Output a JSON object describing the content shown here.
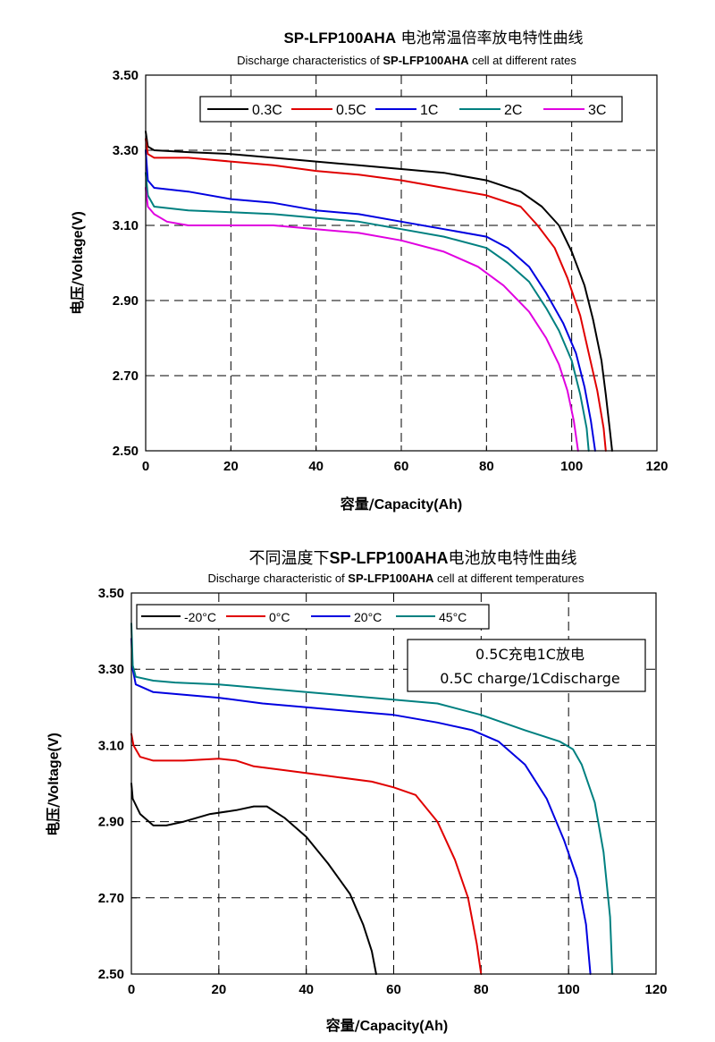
{
  "chart_data": [
    {
      "type": "line",
      "title_part1": "SP-LFP100AHA",
      "title_part2": " 电池常温倍率放电特性曲线",
      "subtitle_part1": "Discharge characteristics of ",
      "subtitle_part2": "SP-LFP100AHA",
      "subtitle_part3": " cell at different rates",
      "xlabel_zh": "容量/",
      "xlabel_en": "Capacity(Ah)",
      "ylabel_zh": "电压/",
      "ylabel_en": "Voltage(V)",
      "xlim": [
        0,
        120
      ],
      "ylim": [
        2.5,
        3.5
      ],
      "x_ticks": [
        "0",
        "20",
        "40",
        "60",
        "80",
        "100",
        "120"
      ],
      "y_ticks": [
        "2.50",
        "2.70",
        "2.90",
        "3.10",
        "3.30",
        "3.50"
      ],
      "grid": true,
      "legend_position": "top-center",
      "series": [
        {
          "name": "0.3C",
          "color": "#000000",
          "points": [
            [
              0,
              3.35
            ],
            [
              0.5,
              3.31
            ],
            [
              2,
              3.3
            ],
            [
              10,
              3.295
            ],
            [
              20,
              3.29
            ],
            [
              30,
              3.28
            ],
            [
              40,
              3.27
            ],
            [
              50,
              3.26
            ],
            [
              60,
              3.25
            ],
            [
              70,
              3.24
            ],
            [
              80,
              3.22
            ],
            [
              88,
              3.19
            ],
            [
              93,
              3.15
            ],
            [
              97,
              3.1
            ],
            [
              100,
              3.03
            ],
            [
              103,
              2.94
            ],
            [
              105,
              2.85
            ],
            [
              107,
              2.74
            ],
            [
              108,
              2.65
            ],
            [
              109,
              2.55
            ],
            [
              109.5,
              2.5
            ]
          ]
        },
        {
          "name": "0.5C",
          "color": "#e00000",
          "points": [
            [
              0,
              3.33
            ],
            [
              0.5,
              3.29
            ],
            [
              2,
              3.28
            ],
            [
              10,
              3.28
            ],
            [
              20,
              3.27
            ],
            [
              30,
              3.26
            ],
            [
              40,
              3.245
            ],
            [
              50,
              3.235
            ],
            [
              60,
              3.22
            ],
            [
              70,
              3.2
            ],
            [
              80,
              3.18
            ],
            [
              88,
              3.15
            ],
            [
              92,
              3.1
            ],
            [
              96,
              3.04
            ],
            [
              99,
              2.96
            ],
            [
              102,
              2.86
            ],
            [
              104,
              2.76
            ],
            [
              106,
              2.66
            ],
            [
              107.5,
              2.56
            ],
            [
              108,
              2.5
            ]
          ]
        },
        {
          "name": "1C",
          "color": "#0000e0",
          "points": [
            [
              0,
              3.3
            ],
            [
              0.5,
              3.22
            ],
            [
              2,
              3.2
            ],
            [
              10,
              3.19
            ],
            [
              20,
              3.17
            ],
            [
              30,
              3.16
            ],
            [
              40,
              3.14
            ],
            [
              50,
              3.13
            ],
            [
              60,
              3.11
            ],
            [
              70,
              3.09
            ],
            [
              80,
              3.07
            ],
            [
              85,
              3.04
            ],
            [
              90,
              2.99
            ],
            [
              94,
              2.92
            ],
            [
              98,
              2.84
            ],
            [
              101,
              2.76
            ],
            [
              103,
              2.67
            ],
            [
              104.5,
              2.58
            ],
            [
              105.5,
              2.5
            ]
          ]
        },
        {
          "name": "2C",
          "color": "#008080",
          "points": [
            [
              0,
              3.24
            ],
            [
              0.5,
              3.18
            ],
            [
              2,
              3.15
            ],
            [
              10,
              3.14
            ],
            [
              20,
              3.135
            ],
            [
              30,
              3.13
            ],
            [
              40,
              3.12
            ],
            [
              50,
              3.11
            ],
            [
              60,
              3.09
            ],
            [
              70,
              3.07
            ],
            [
              80,
              3.04
            ],
            [
              85,
              3.0
            ],
            [
              90,
              2.95
            ],
            [
              94,
              2.88
            ],
            [
              97,
              2.82
            ],
            [
              100,
              2.74
            ],
            [
              102,
              2.65
            ],
            [
              103.5,
              2.56
            ],
            [
              104,
              2.5
            ]
          ]
        },
        {
          "name": "3C",
          "color": "#e000e0",
          "points": [
            [
              0,
              3.2
            ],
            [
              0.5,
              3.15
            ],
            [
              2,
              3.13
            ],
            [
              5,
              3.11
            ],
            [
              10,
              3.1
            ],
            [
              20,
              3.1
            ],
            [
              30,
              3.1
            ],
            [
              40,
              3.09
            ],
            [
              50,
              3.08
            ],
            [
              60,
              3.06
            ],
            [
              70,
              3.03
            ],
            [
              78,
              2.99
            ],
            [
              84,
              2.94
            ],
            [
              90,
              2.87
            ],
            [
              94,
              2.8
            ],
            [
              97,
              2.73
            ],
            [
              99,
              2.66
            ],
            [
              100.5,
              2.58
            ],
            [
              101.5,
              2.5
            ]
          ]
        }
      ]
    },
    {
      "type": "line",
      "title_part1": "不同温度下",
      "title_part2": "SP-LFP100AHA",
      "title_part3": "电池放电特性曲线",
      "subtitle_part1": "Discharge characteristic of ",
      "subtitle_part2": "SP-LFP100AHA",
      "subtitle_part3": " cell at different temperatures",
      "xlabel_zh": "容量/",
      "xlabel_en": "Capacity(Ah)",
      "ylabel_zh": "电压/",
      "ylabel_en": "Voltage(V)",
      "xlim": [
        0,
        120
      ],
      "ylim": [
        2.5,
        3.5
      ],
      "x_ticks": [
        "0",
        "20",
        "40",
        "60",
        "80",
        "100",
        "120"
      ],
      "y_ticks": [
        "2.50",
        "2.70",
        "2.90",
        "3.10",
        "3.30",
        "3.50"
      ],
      "grid": true,
      "legend_position": "top-left",
      "annotation": [
        "0.5C充电1C放电",
        "0.5C charge/1Cdischarge"
      ],
      "series": [
        {
          "name": "-20°C",
          "color": "#000000",
          "points": [
            [
              0,
              3.0
            ],
            [
              0.3,
              2.96
            ],
            [
              2,
              2.92
            ],
            [
              5,
              2.89
            ],
            [
              8,
              2.89
            ],
            [
              12,
              2.9
            ],
            [
              18,
              2.92
            ],
            [
              24,
              2.93
            ],
            [
              28,
              2.94
            ],
            [
              31,
              2.94
            ],
            [
              35,
              2.91
            ],
            [
              40,
              2.86
            ],
            [
              45,
              2.79
            ],
            [
              50,
              2.71
            ],
            [
              53,
              2.63
            ],
            [
              55,
              2.56
            ],
            [
              56,
              2.5
            ]
          ]
        },
        {
          "name": "0°C",
          "color": "#e00000",
          "points": [
            [
              0,
              3.13
            ],
            [
              0.5,
              3.1
            ],
            [
              2,
              3.07
            ],
            [
              5,
              3.06
            ],
            [
              12,
              3.06
            ],
            [
              20,
              3.065
            ],
            [
              24,
              3.06
            ],
            [
              28,
              3.045
            ],
            [
              35,
              3.035
            ],
            [
              45,
              3.02
            ],
            [
              55,
              3.005
            ],
            [
              60,
              2.99
            ],
            [
              65,
              2.97
            ],
            [
              70,
              2.9
            ],
            [
              74,
              2.8
            ],
            [
              77,
              2.7
            ],
            [
              79,
              2.58
            ],
            [
              80,
              2.5
            ]
          ]
        },
        {
          "name": "20°C",
          "color": "#0000e0",
          "points": [
            [
              0,
              3.38
            ],
            [
              0.3,
              3.3
            ],
            [
              1,
              3.26
            ],
            [
              5,
              3.24
            ],
            [
              10,
              3.235
            ],
            [
              20,
              3.225
            ],
            [
              30,
              3.21
            ],
            [
              40,
              3.2
            ],
            [
              50,
              3.19
            ],
            [
              60,
              3.18
            ],
            [
              70,
              3.16
            ],
            [
              78,
              3.14
            ],
            [
              84,
              3.11
            ],
            [
              90,
              3.05
            ],
            [
              95,
              2.96
            ],
            [
              99,
              2.85
            ],
            [
              102,
              2.75
            ],
            [
              104,
              2.63
            ],
            [
              105,
              2.5
            ]
          ]
        },
        {
          "name": "45°C",
          "color": "#008080",
          "points": [
            [
              0,
              3.42
            ],
            [
              0.3,
              3.31
            ],
            [
              1,
              3.28
            ],
            [
              5,
              3.27
            ],
            [
              10,
              3.265
            ],
            [
              20,
              3.26
            ],
            [
              30,
              3.25
            ],
            [
              40,
              3.24
            ],
            [
              50,
              3.23
            ],
            [
              60,
              3.22
            ],
            [
              70,
              3.21
            ],
            [
              80,
              3.18
            ],
            [
              90,
              3.14
            ],
            [
              98,
              3.11
            ],
            [
              101,
              3.09
            ],
            [
              103,
              3.05
            ],
            [
              106,
              2.95
            ],
            [
              108,
              2.82
            ],
            [
              109.5,
              2.65
            ],
            [
              110,
              2.5
            ]
          ]
        }
      ]
    }
  ]
}
